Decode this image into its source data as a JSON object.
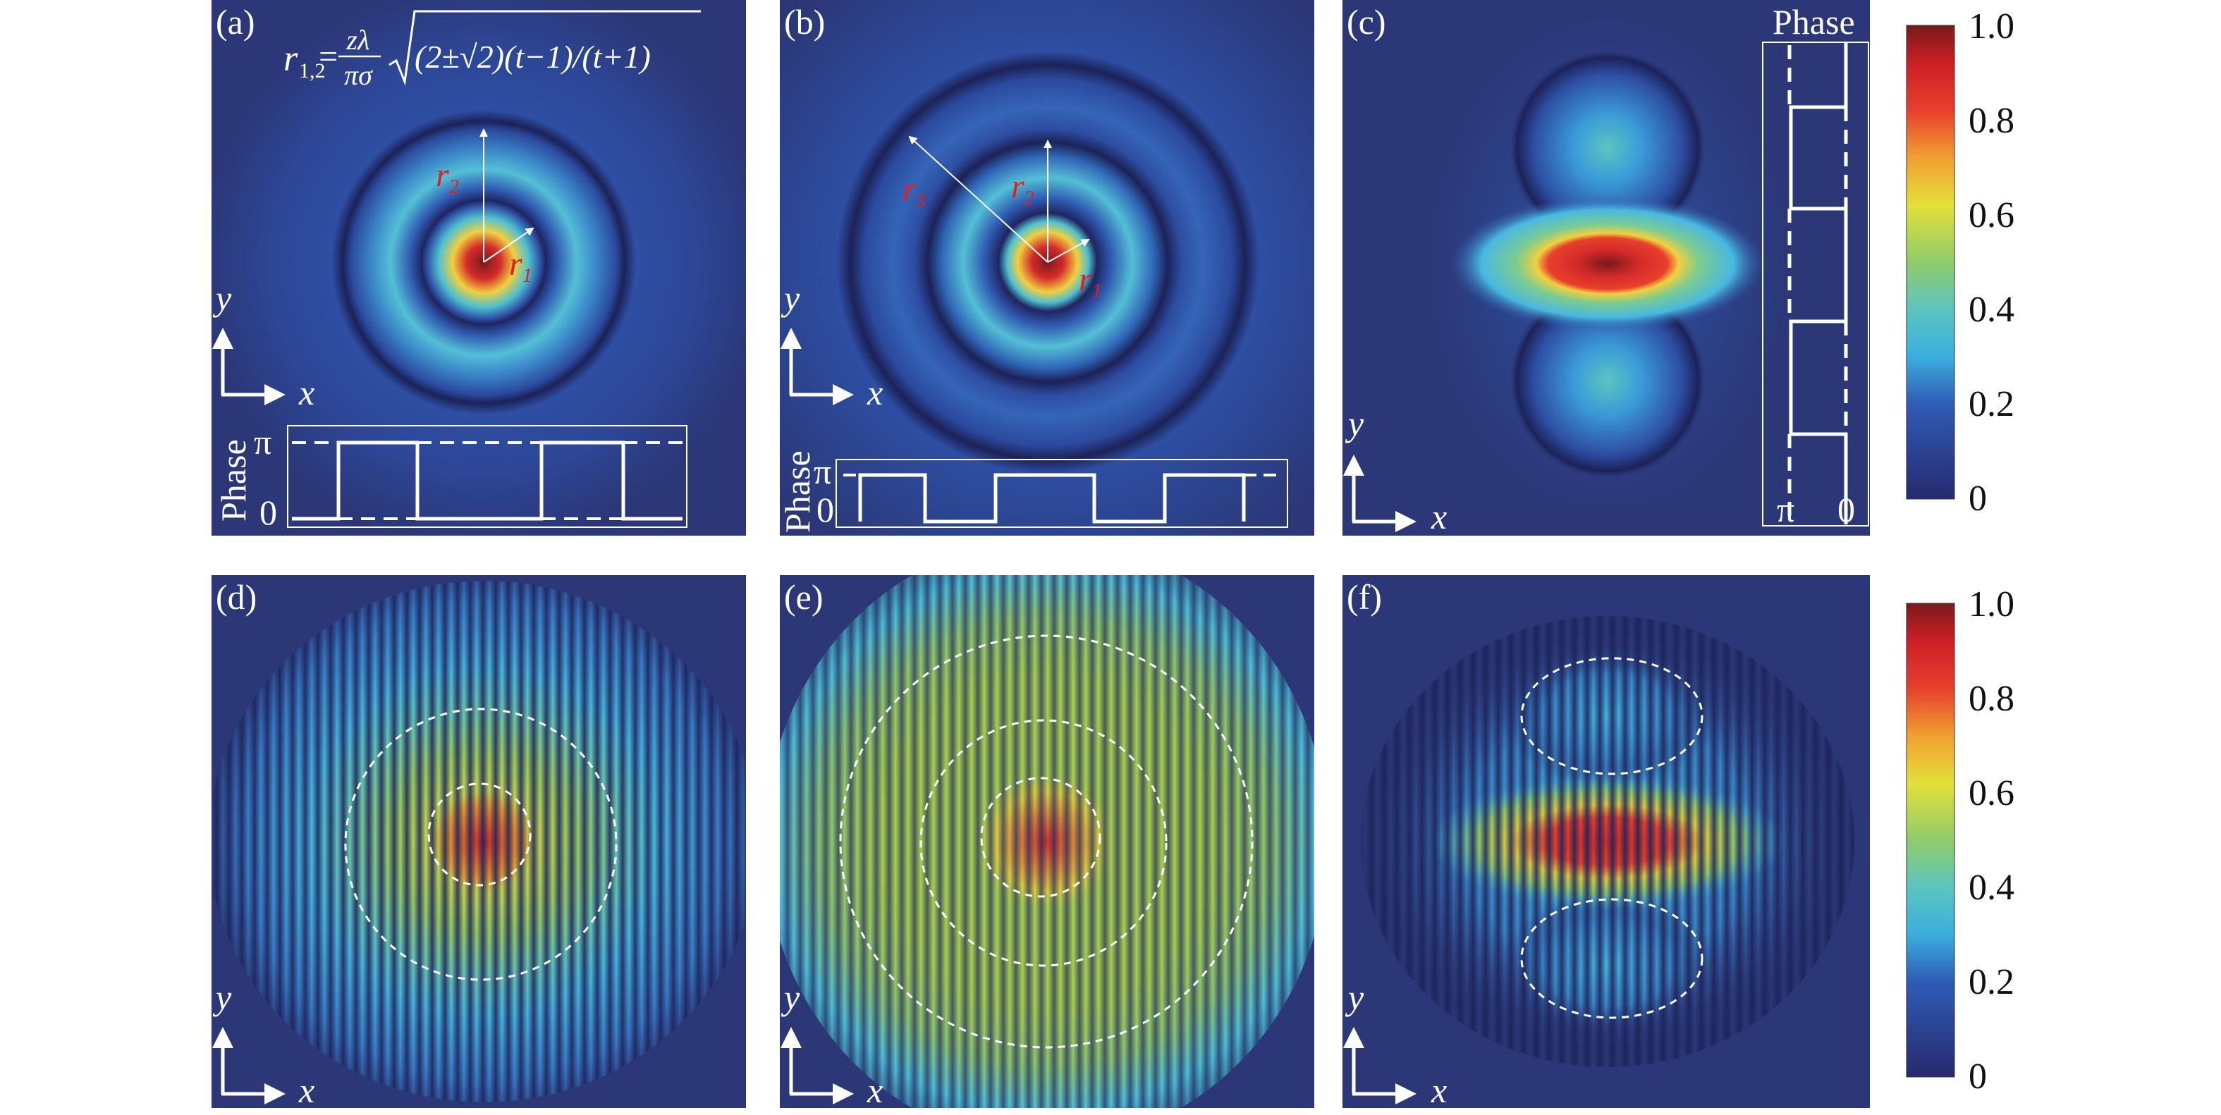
{
  "figure": {
    "panels": [
      {
        "label": "(a)"
      },
      {
        "label": "(b)"
      },
      {
        "label": "(c)"
      },
      {
        "label": "(d)"
      },
      {
        "label": "(e)"
      },
      {
        "label": "(f)"
      }
    ],
    "formula": {
      "lhs": "r",
      "lhs_sub": "1,2",
      "equals": "=",
      "numerator": "zλ",
      "denominator": "πσ",
      "radicand": "(2±√2)(t−1)/(t+1)"
    },
    "radius_labels": {
      "r1": "r",
      "r1_sub": "1",
      "r2": "r",
      "r2_sub": "2",
      "r3": "r",
      "r3_sub": "3"
    },
    "axes": {
      "x": "x",
      "y": "y"
    },
    "phase_inset": {
      "title": "Phase",
      "pi": "π",
      "zero": "0"
    },
    "colorbar": {
      "ticks": [
        "1.0",
        "0.8",
        "0.6",
        "0.4",
        "0.2",
        "0"
      ],
      "range": [
        0,
        1
      ],
      "colormap": "jet",
      "colors": [
        "#262a6e",
        "#2f5bb5",
        "#3aaedd",
        "#5cc5c0",
        "#e3e03a",
        "#f0a030",
        "#e8402c",
        "#7a1a1a"
      ]
    },
    "background_color": "#2b3777"
  }
}
